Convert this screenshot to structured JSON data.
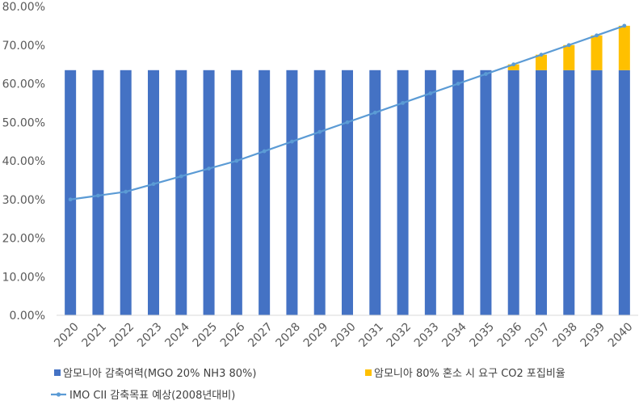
{
  "chart_data": {
    "type": "bar",
    "stacked": true,
    "categories": [
      "2020",
      "2021",
      "2022",
      "2023",
      "2024",
      "2025",
      "2026",
      "2027",
      "2028",
      "2029",
      "2030",
      "2031",
      "2032",
      "2033",
      "2034",
      "2035",
      "2036",
      "2037",
      "2038",
      "2039",
      "2040"
    ],
    "ylim": [
      0,
      80
    ],
    "yticks": [
      "0.00%",
      "10.00%",
      "20.00%",
      "30.00%",
      "40.00%",
      "50.00%",
      "60.00%",
      "70.00%",
      "80.00%"
    ],
    "series": [
      {
        "name": "암모니아 감축여력(MGO 20% NH3 80%)",
        "kind": "bar",
        "color": "#4472C4",
        "values": [
          63.5,
          63.5,
          63.5,
          63.5,
          63.5,
          63.5,
          63.5,
          63.5,
          63.5,
          63.5,
          63.5,
          63.5,
          63.5,
          63.5,
          63.5,
          63.5,
          63.5,
          63.5,
          63.5,
          63.5,
          63.5
        ]
      },
      {
        "name": "암모니아 80% 혼소 시 요구 CO2 포집비율",
        "kind": "bar",
        "color": "#FFC000",
        "values": [
          0,
          0,
          0,
          0,
          0,
          0,
          0,
          0,
          0,
          0,
          0,
          0,
          0,
          0,
          0,
          0,
          1.5,
          4.0,
          6.5,
          9.0,
          11.5
        ]
      },
      {
        "name": "IMO CII 감축목표 예상(2008년대비)",
        "kind": "line",
        "color": "#5B9BD5",
        "values": [
          30,
          31,
          32,
          34,
          36,
          38,
          40,
          42.5,
          45,
          47.5,
          50,
          52.5,
          55,
          57.5,
          60,
          62.5,
          65,
          67.5,
          70,
          72.5,
          75
        ]
      }
    ],
    "legend": "bottom",
    "grid": false
  }
}
